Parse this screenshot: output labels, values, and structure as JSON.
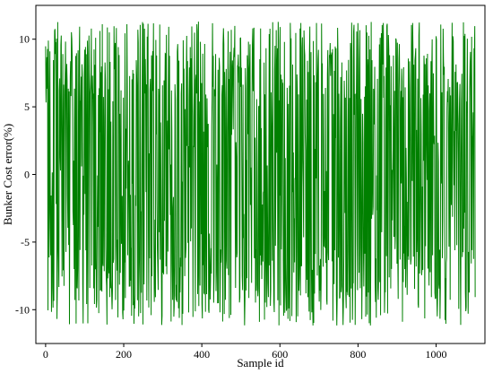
{
  "chart_data": {
    "type": "line",
    "title": "",
    "xlabel": "Sample id",
    "ylabel": "Bunker Cost error(%)",
    "xlim": [
      -25,
      1125
    ],
    "ylim": [
      -12.5,
      12.5
    ],
    "x_ticks": [
      0,
      200,
      400,
      600,
      800,
      1000
    ],
    "y_ticks": [
      -10,
      -5,
      0,
      5,
      10
    ],
    "grid": false,
    "legend": "none",
    "series": [
      {
        "color": "#008000",
        "x_start": 0,
        "x_end": 1100,
        "n_points": 1100,
        "value_range": [
          -11.2,
          11.3
        ],
        "mean": 0,
        "note_pattern": "dense noise"
      }
    ],
    "frame_color": "#000000"
  }
}
